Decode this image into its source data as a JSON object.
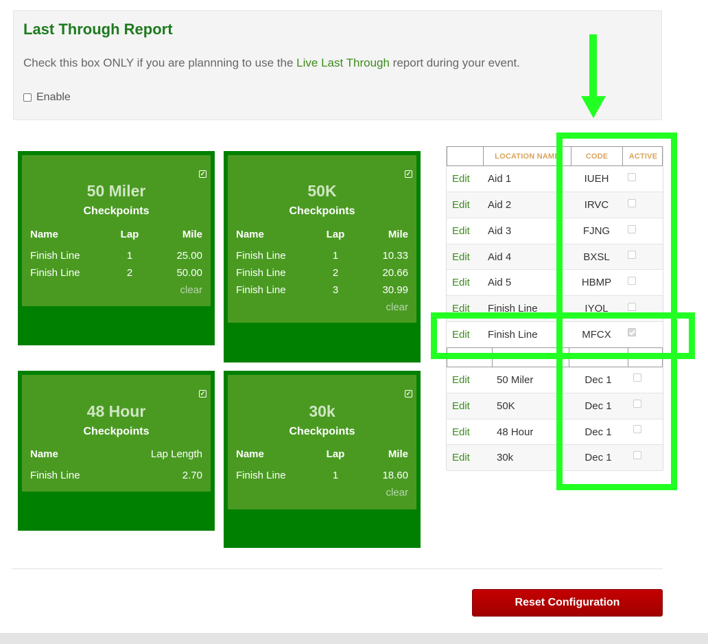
{
  "last_through": {
    "title": "Last Through Report",
    "desc_pre": "Check this box ONLY if you are plannning to use the ",
    "desc_link": "Live Last Through",
    "desc_post": " report during your event.",
    "enable_label": "Enable"
  },
  "races": [
    {
      "name": "50 Miler",
      "subtitle": "Checkpoints",
      "cols": [
        "Name",
        "Lap",
        "Mile"
      ],
      "rows": [
        [
          "Finish Line",
          "1",
          "25.00"
        ],
        [
          "Finish Line",
          "2",
          "50.00"
        ]
      ],
      "clear": "clear"
    },
    {
      "name": "50K",
      "subtitle": "Checkpoints",
      "cols": [
        "Name",
        "Lap",
        "Mile"
      ],
      "rows": [
        [
          "Finish Line",
          "1",
          "10.33"
        ],
        [
          "Finish Line",
          "2",
          "20.66"
        ],
        [
          "Finish Line",
          "3",
          "30.99"
        ]
      ],
      "clear": "clear"
    },
    {
      "name": "48 Hour",
      "subtitle": "Checkpoints",
      "cols": [
        "Name",
        "Lap Length"
      ],
      "rows": [
        [
          "Finish Line",
          "2.70"
        ]
      ]
    },
    {
      "name": "30k",
      "subtitle": "Checkpoints",
      "cols": [
        "Name",
        "Lap",
        "Mile"
      ],
      "rows": [
        [
          "Finish Line",
          "1",
          "18.60"
        ]
      ],
      "clear": "clear"
    }
  ],
  "locations": {
    "headers": [
      "",
      "LOCATION NAME",
      "CODE",
      "ACTIVE"
    ],
    "edit_label": "Edit",
    "rows": [
      {
        "name": "Aid 1",
        "code": "IUEH",
        "active": false
      },
      {
        "name": "Aid 2",
        "code": "IRVC",
        "active": false
      },
      {
        "name": "Aid 3",
        "code": "FJNG",
        "active": false
      },
      {
        "name": "Aid 4",
        "code": "BXSL",
        "active": false
      },
      {
        "name": "Aid 5",
        "code": "HBMP",
        "active": false
      },
      {
        "name": "Finish Line",
        "code": "IYOL",
        "active": false
      },
      {
        "name": "Finish Line",
        "code": "MFCX",
        "active": true
      }
    ],
    "events": [
      {
        "name": "50 Miler",
        "date": "Dec 1",
        "active": false
      },
      {
        "name": "50K",
        "date": "Dec 1",
        "active": false
      },
      {
        "name": "48 Hour",
        "date": "Dec 1",
        "active": false
      },
      {
        "name": "30k",
        "date": "Dec 1",
        "active": false
      }
    ]
  },
  "reset_label": "Reset Configuration",
  "colors": {
    "card_outer": "#008000",
    "card_inner": "#4a9a22",
    "annotation": "#22ff22",
    "reset": "#b00000"
  }
}
